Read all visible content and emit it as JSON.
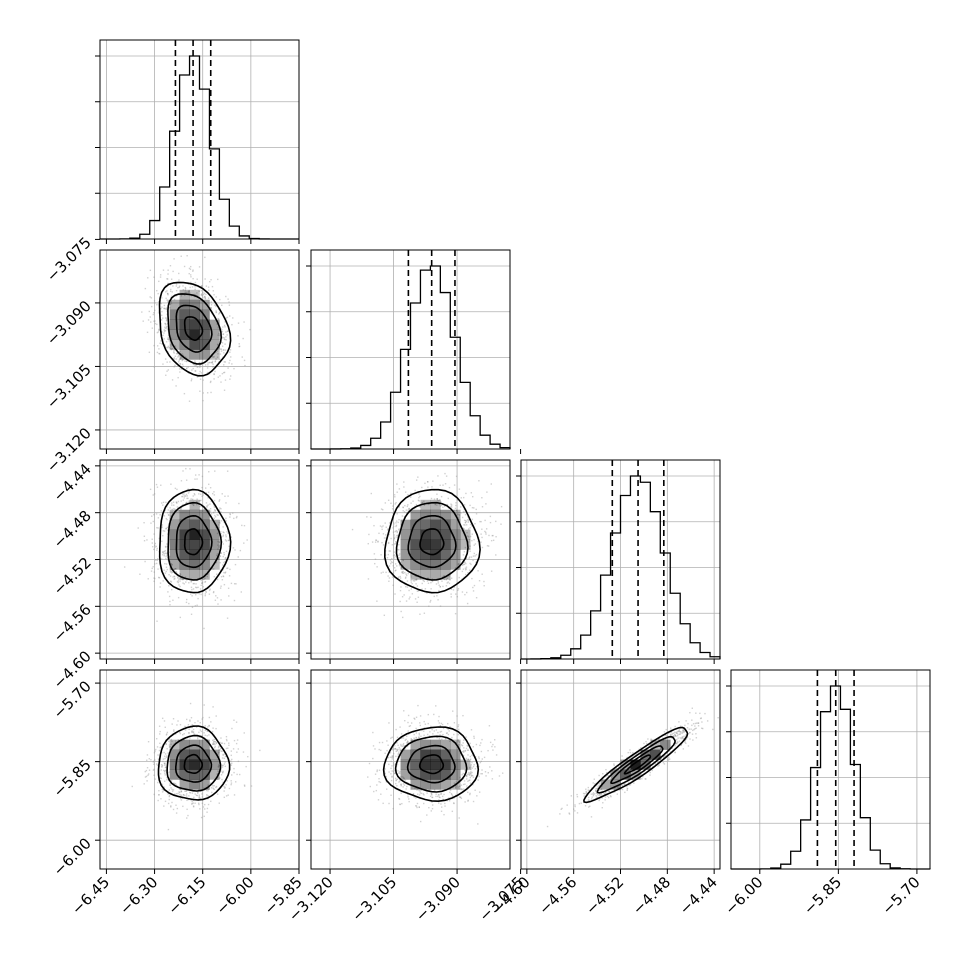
{
  "chart_data": {
    "type": "corner",
    "parameters": [
      {
        "center": -6.18,
        "sigma": 0.055,
        "range": [
          -6.47,
          -5.85
        ],
        "ticks": [
          "−6.45",
          "−6.30",
          "−6.15",
          "−6.00",
          "−5.85"
        ],
        "tick_values": [
          -6.45,
          -6.3,
          -6.15,
          -6.0,
          -5.85
        ],
        "quantiles": [
          -6.235,
          -6.18,
          -6.125
        ]
      },
      {
        "center": -3.096,
        "sigma": 0.0055,
        "range": [
          -3.1245,
          -3.0775
        ],
        "ticks": [
          "−3.120",
          "−3.105",
          "−3.090",
          "−3.075"
        ],
        "tick_values": [
          -3.12,
          -3.105,
          -3.09,
          -3.075
        ],
        "quantiles": [
          -3.1015,
          -3.096,
          -3.0905
        ]
      },
      {
        "center": -4.505,
        "sigma": 0.022,
        "range": [
          -4.605,
          -4.435
        ],
        "ticks": [
          "−4.60",
          "−4.56",
          "−4.52",
          "−4.48",
          "−4.44"
        ],
        "tick_values": [
          -4.6,
          -4.56,
          -4.52,
          -4.48,
          -4.44
        ],
        "quantiles": [
          -4.527,
          -4.505,
          -4.483
        ]
      },
      {
        "center": -5.855,
        "sigma": 0.035,
        "range": [
          -6.055,
          -5.675
        ],
        "ticks": [
          "−6.00",
          "−5.85",
          "−5.70"
        ],
        "tick_values": [
          -6.0,
          -5.85,
          -5.7
        ],
        "quantiles": [
          -5.89,
          -5.855,
          -5.82
        ]
      }
    ],
    "y_tick_sets": [
      null,
      {
        "ticks": [
          "−3.075",
          "−3.090",
          "−3.105",
          "−3.120"
        ],
        "tick_values": [
          -3.075,
          -3.09,
          -3.105,
          -3.12
        ]
      },
      {
        "ticks": [
          "−4.44",
          "−4.48",
          "−4.52",
          "−4.56",
          "−4.60"
        ],
        "tick_values": [
          -4.44,
          -4.48,
          -4.52,
          -4.56,
          -4.6
        ]
      },
      {
        "ticks": [
          "−5.70",
          "−5.85",
          "−6.00"
        ],
        "tick_values": [
          -5.7,
          -5.85,
          -6.0
        ]
      }
    ],
    "correlations": [
      [
        1,
        -0.25,
        0,
        0
      ],
      [
        -0.25,
        1,
        0,
        0
      ],
      [
        0,
        0,
        1,
        0.93
      ],
      [
        0,
        0,
        0.93,
        1
      ]
    ],
    "grid": true,
    "histogram_bins": 20,
    "contour_levels_sigma": [
      0.5,
      1,
      1.5,
      2
    ],
    "colors": {
      "line": "#000000",
      "grid": "#b0b0b0",
      "density": "#000000",
      "points": "#9a9a9a"
    }
  }
}
